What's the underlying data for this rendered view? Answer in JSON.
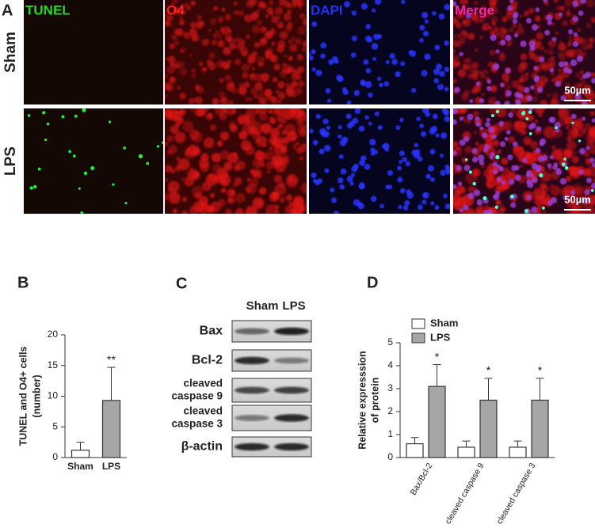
{
  "panel_a": {
    "label": "A",
    "channels": [
      {
        "name": "TUNEL",
        "color": "#22dd22"
      },
      {
        "name": "O4",
        "color": "#ff2222"
      },
      {
        "name": "DAPI",
        "color": "#2233ff"
      },
      {
        "name": "Merge",
        "color": "#ff22aa"
      }
    ],
    "rows": [
      "Sham",
      "LPS"
    ],
    "scale_bar": "50µm"
  },
  "panel_c": {
    "label": "C",
    "lanes": [
      "Sham",
      "LPS"
    ],
    "proteins": [
      [
        "Bax"
      ],
      [
        "Bcl-2"
      ],
      [
        "cleaved",
        "caspase 9"
      ],
      [
        "cleaved",
        "caspase 3"
      ],
      [
        "β-actin"
      ]
    ]
  },
  "chart_data": [
    {
      "type": "bar",
      "label": "B",
      "ylabel": [
        "TUNEL and O4+ cells",
        "(number)"
      ],
      "categories": [
        "Sham",
        "LPS"
      ],
      "values": [
        1.2,
        9.3
      ],
      "errors": [
        1.3,
        5.4
      ],
      "colors": [
        "#ffffff",
        "#a6a6a6"
      ],
      "significance": [
        null,
        "**"
      ],
      "ylim": [
        0,
        20
      ],
      "yticks": [
        0,
        5,
        10,
        15,
        20
      ]
    },
    {
      "type": "grouped-bar",
      "label": "D",
      "ylabel": [
        "Relative expresssion",
        "of protein"
      ],
      "categories": [
        "Bax/Bcl-2",
        "cleaved caspase 9",
        "cleaved caspase 3"
      ],
      "series": [
        {
          "name": "Sham",
          "color": "#ffffff",
          "values": [
            0.6,
            0.45,
            0.45
          ],
          "errors": [
            0.27,
            0.27,
            0.27
          ],
          "significance": [
            null,
            null,
            null
          ]
        },
        {
          "name": "LPS",
          "color": "#a6a6a6",
          "values": [
            3.1,
            2.5,
            2.5
          ],
          "errors": [
            0.95,
            0.95,
            0.95
          ],
          "significance": [
            "*",
            "*",
            "*"
          ]
        }
      ],
      "ylim": [
        0,
        5
      ],
      "yticks": [
        0,
        1,
        2,
        3,
        4,
        5
      ]
    }
  ]
}
